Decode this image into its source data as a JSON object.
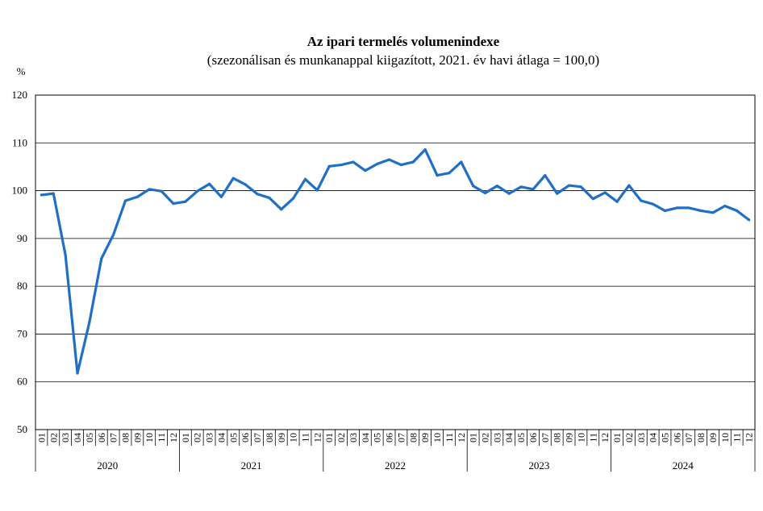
{
  "chart_data": {
    "type": "line",
    "title": "Az ipari termelés volumenindexe",
    "subtitle": "(szezonálisan és munkanappal kiigazított, 2021. év havi átlaga = 100,0)",
    "ylabel": "%",
    "xlabel": "",
    "ylim": [
      50,
      120
    ],
    "yticks": [
      50,
      60,
      70,
      80,
      90,
      100,
      110,
      120
    ],
    "grid": true,
    "legend": "none",
    "line_color": "#1f6fc5",
    "years": [
      "2020",
      "2021",
      "2022",
      "2023",
      "2024"
    ],
    "months": [
      "01",
      "02",
      "03",
      "04",
      "05",
      "06",
      "07",
      "08",
      "09",
      "10",
      "11",
      "12"
    ],
    "series": [
      {
        "values": [
          99.1,
          99.4,
          86.5,
          61.8,
          72.5,
          85.8,
          90.8,
          97.9,
          98.7,
          100.3,
          99.9,
          97.3,
          97.7,
          99.9,
          101.4,
          98.7,
          102.6,
          101.3,
          99.3,
          98.5,
          96.1,
          98.4,
          102.4,
          100.1,
          105.1,
          105.4,
          106.0,
          104.2,
          105.6,
          106.5,
          105.4,
          106.0,
          108.6,
          103.2,
          103.7,
          106.0,
          101.0,
          99.5,
          101.0,
          99.4,
          100.8,
          100.3,
          103.2,
          99.4,
          101.1,
          100.8,
          98.3,
          99.6,
          97.7,
          101.1,
          97.9,
          97.2,
          95.8,
          96.4,
          96.4,
          95.8,
          95.4,
          96.8,
          95.8,
          93.9
        ]
      }
    ]
  }
}
